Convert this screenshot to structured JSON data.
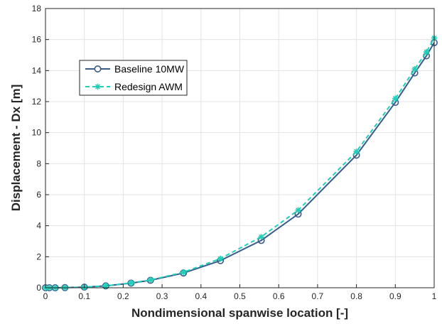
{
  "chart_data": {
    "type": "line",
    "title": "",
    "xlabel": "Nondimensional spanwise location [-]",
    "ylabel": "Displacement - Dx [m]",
    "xlim": [
      0,
      1
    ],
    "ylim": [
      0,
      18
    ],
    "xticks": [
      "0",
      "0.1",
      "0.2",
      "0.3",
      "0.4",
      "0.5",
      "0.6",
      "0.7",
      "0.8",
      "0.9",
      "1"
    ],
    "yticks": [
      "0",
      "2",
      "4",
      "6",
      "8",
      "10",
      "12",
      "14",
      "16",
      "18"
    ],
    "grid": true,
    "legend_position": "upper-left",
    "series": [
      {
        "name": "Baseline 10MW",
        "color": "#3a5a8c",
        "marker": "circle",
        "line_style": "solid",
        "x": [
          0,
          0.01,
          0.025,
          0.05,
          0.1,
          0.155,
          0.22,
          0.27,
          0.355,
          0.45,
          0.555,
          0.65,
          0.8,
          0.9,
          0.95,
          0.98,
          1.0
        ],
        "y": [
          0,
          0,
          0,
          0.01,
          0.04,
          0.12,
          0.3,
          0.48,
          0.95,
          1.75,
          3.05,
          4.75,
          8.55,
          11.95,
          13.85,
          14.95,
          15.8
        ]
      },
      {
        "name": "Redesign AWM",
        "color": "#1fd1b8",
        "marker": "asterisk",
        "line_style": "dashed",
        "x": [
          0,
          0.01,
          0.025,
          0.05,
          0.1,
          0.155,
          0.22,
          0.27,
          0.355,
          0.45,
          0.555,
          0.65,
          0.8,
          0.9,
          0.95,
          0.98,
          1.0
        ],
        "y": [
          0,
          0,
          0,
          0.01,
          0.04,
          0.12,
          0.31,
          0.5,
          1.0,
          1.88,
          3.28,
          5.0,
          8.78,
          12.2,
          14.1,
          15.2,
          16.1
        ]
      }
    ]
  }
}
